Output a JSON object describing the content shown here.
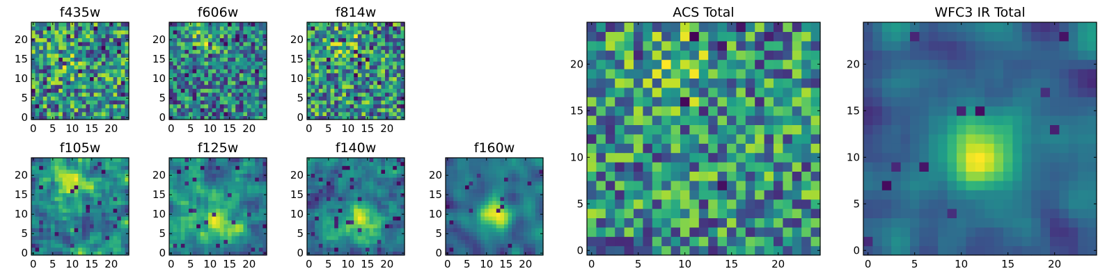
{
  "chart_data": [
    {
      "type": "heatmap",
      "title": "f435w",
      "xlim": [
        0,
        25
      ],
      "ylim": [
        0,
        25
      ],
      "xticks": [
        "0",
        "5",
        "10",
        "15",
        "20"
      ],
      "yticks": [
        "0",
        "5",
        "10",
        "15",
        "20"
      ],
      "grid": false,
      "colormap": "viridis",
      "seed": 11,
      "smooth": 0,
      "hot_x": 9,
      "hot_y": 14,
      "hot_amp": 0.15,
      "dark_prob": 0.05
    },
    {
      "type": "heatmap",
      "title": "f606w",
      "xlim": [
        0,
        25
      ],
      "ylim": [
        0,
        25
      ],
      "xticks": [
        "0",
        "5",
        "10",
        "15",
        "20"
      ],
      "yticks": [
        "0",
        "5",
        "10",
        "15",
        "20"
      ],
      "grid": false,
      "colormap": "viridis",
      "seed": 23,
      "smooth": 0,
      "hot_x": 9,
      "hot_y": 20,
      "hot_amp": 0.35,
      "dark_prob": 0.06
    },
    {
      "type": "heatmap",
      "title": "f814w",
      "xlim": [
        0,
        25
      ],
      "ylim": [
        0,
        25
      ],
      "xticks": [
        "0",
        "5",
        "10",
        "15",
        "20"
      ],
      "yticks": [
        "0",
        "5",
        "10",
        "15",
        "20"
      ],
      "grid": false,
      "colormap": "viridis",
      "seed": 37,
      "smooth": 0,
      "hot_x": 9,
      "hot_y": 20,
      "hot_amp": 0.3,
      "dark_prob": 0.06
    },
    {
      "type": "heatmap",
      "title": "f105w",
      "xlim": [
        0,
        25
      ],
      "ylim": [
        0,
        25
      ],
      "xticks": [
        "0",
        "5",
        "10",
        "15",
        "20"
      ],
      "yticks": [
        "0",
        "5",
        "10",
        "15",
        "20"
      ],
      "grid": false,
      "colormap": "viridis",
      "seed": 41,
      "smooth": 1,
      "hot_x": 10,
      "hot_y": 18,
      "hot_amp": 0.4,
      "dark_prob": 0.04
    },
    {
      "type": "heatmap",
      "title": "f125w",
      "xlim": [
        0,
        25
      ],
      "ylim": [
        0,
        25
      ],
      "xticks": [
        "0",
        "5",
        "10",
        "15",
        "20"
      ],
      "yticks": [
        "0",
        "5",
        "10",
        "15",
        "20"
      ],
      "grid": false,
      "colormap": "viridis",
      "seed": 53,
      "smooth": 1,
      "hot_x": 12,
      "hot_y": 8,
      "hot_amp": 0.4,
      "dark_prob": 0.05
    },
    {
      "type": "heatmap",
      "title": "f140w",
      "xlim": [
        0,
        25
      ],
      "ylim": [
        0,
        25
      ],
      "xticks": [
        "0",
        "5",
        "10",
        "15",
        "20"
      ],
      "yticks": [
        "0",
        "5",
        "10",
        "15",
        "20"
      ],
      "grid": false,
      "colormap": "viridis",
      "seed": 67,
      "smooth": 1,
      "hot_x": 13,
      "hot_y": 8,
      "hot_amp": 0.45,
      "dark_prob": 0.04
    },
    {
      "type": "heatmap",
      "title": "f160w",
      "xlim": [
        0,
        25
      ],
      "ylim": [
        0,
        25
      ],
      "xticks": [
        "0",
        "5",
        "10",
        "15",
        "20"
      ],
      "yticks": [
        "0",
        "5",
        "10",
        "15",
        "20"
      ],
      "grid": false,
      "colormap": "viridis",
      "seed": 79,
      "smooth": 2,
      "hot_x": 12,
      "hot_y": 10,
      "hot_amp": 0.5,
      "dark_prob": 0.03
    },
    {
      "type": "heatmap",
      "title": "ACS Total",
      "xlim": [
        0,
        25
      ],
      "ylim": [
        0,
        25
      ],
      "xticks": [
        "0",
        "5",
        "10",
        "15",
        "20"
      ],
      "yticks": [
        "0",
        "5",
        "10",
        "15",
        "20"
      ],
      "grid": false,
      "colormap": "viridis",
      "seed": 97,
      "smooth": 0,
      "hot_x": 9,
      "hot_y": 20,
      "hot_amp": 0.3,
      "dark_prob": 0.02
    },
    {
      "type": "heatmap",
      "title": "WFC3 IR Total",
      "xlim": [
        0,
        25
      ],
      "ylim": [
        0,
        25
      ],
      "xticks": [
        "0",
        "5",
        "10",
        "15",
        "20"
      ],
      "yticks": [
        "0",
        "5",
        "10",
        "15",
        "20"
      ],
      "grid": false,
      "colormap": "viridis",
      "seed": 113,
      "smooth": 2,
      "hot_x": 12,
      "hot_y": 10,
      "hot_amp": 0.55,
      "dark_prob": 0.02
    }
  ]
}
